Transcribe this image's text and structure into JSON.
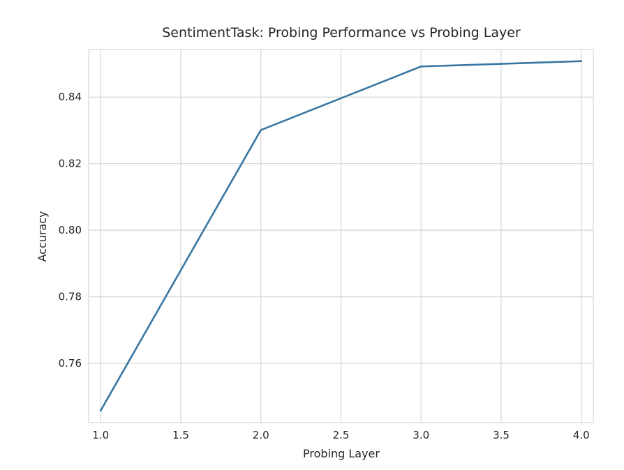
{
  "chart_data": {
    "type": "line",
    "title": "SentimentTask: Probing Performance vs Probing Layer",
    "xlabel": "Probing Layer",
    "ylabel": "Accuracy",
    "xlim": [
      0.925,
      4.075
    ],
    "ylim": [
      0.7422,
      0.8543
    ],
    "xticks": [
      "1.0",
      "1.5",
      "2.0",
      "2.5",
      "3.0",
      "3.5",
      "4.0"
    ],
    "yticks": [
      "0.76",
      "0.78",
      "0.80",
      "0.82",
      "0.84"
    ],
    "grid": true,
    "series": [
      {
        "color": "#3a76a2",
        "x": [
          1.0,
          2.0,
          3.0,
          4.0
        ],
        "y": [
          0.7458,
          0.8301,
          0.8492,
          0.8508
        ]
      }
    ]
  }
}
